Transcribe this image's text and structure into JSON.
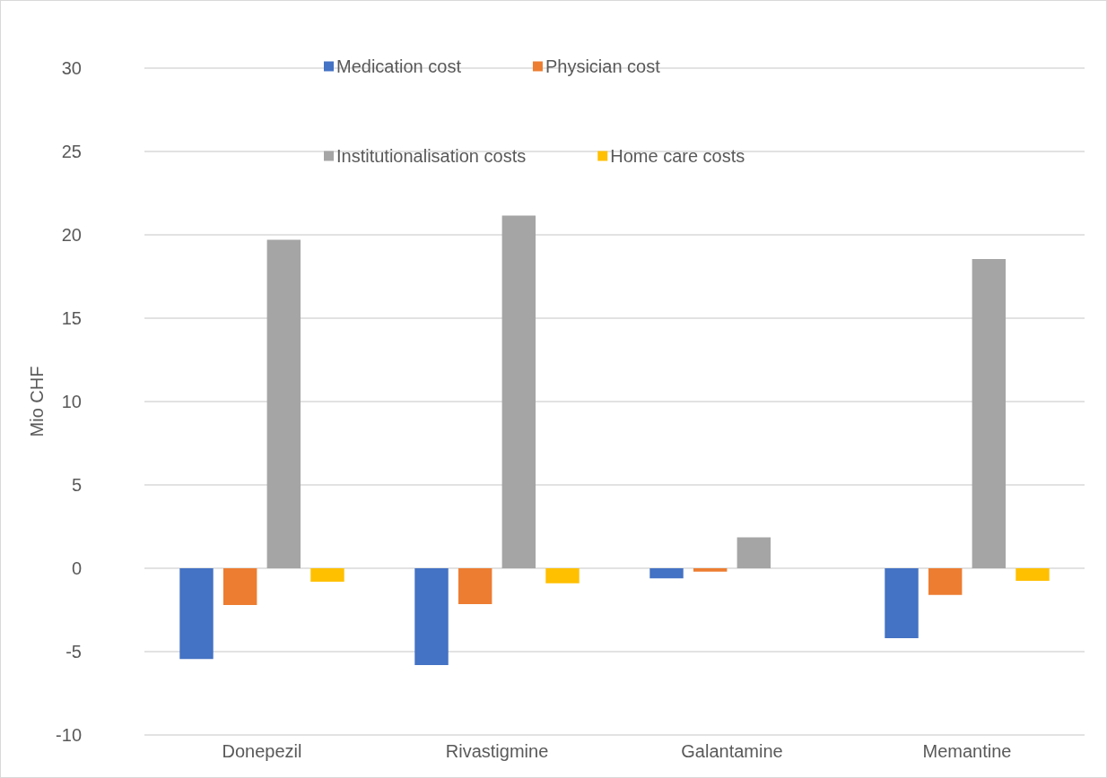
{
  "chart_data": {
    "type": "bar",
    "ylabel": "Mio CHF",
    "categories": [
      "Donepezil",
      "Rivastigmine",
      "Galantamine",
      "Memantine"
    ],
    "series": [
      {
        "name": "Medication cost",
        "color": "#4472c4",
        "values": [
          -5.45,
          -5.8,
          -0.6,
          -4.2
        ]
      },
      {
        "name": "Physician cost",
        "color": "#ed7d31",
        "values": [
          -2.2,
          -2.15,
          -0.2,
          -1.6
        ]
      },
      {
        "name": "Institutionalisation costs",
        "color": "#a5a5a5",
        "values": [
          19.7,
          21.15,
          1.85,
          18.55
        ]
      },
      {
        "name": "Home care costs",
        "color": "#ffc000",
        "values": [
          -0.8,
          -0.9,
          null,
          -0.75
        ]
      }
    ],
    "ylim": [
      -10,
      30
    ],
    "yticks": [
      -10,
      -5,
      0,
      5,
      10,
      15,
      20,
      25,
      30
    ],
    "grid": "y",
    "legend": "top"
  }
}
